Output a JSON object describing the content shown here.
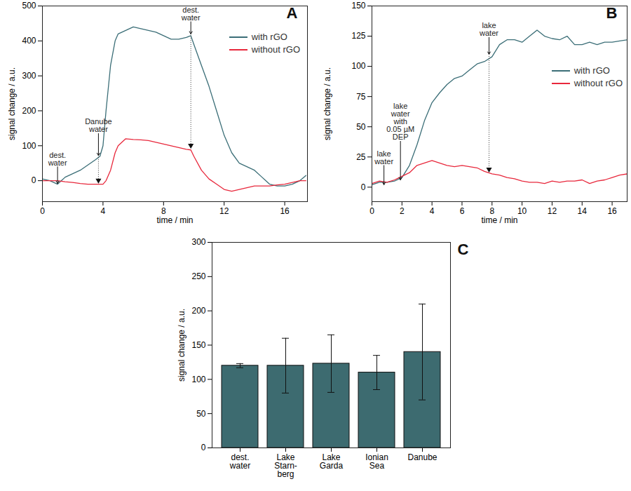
{
  "chart_data": [
    {
      "type": "line",
      "title": "A",
      "x_label": "time / min",
      "y_label": "signal change / a.u.",
      "xlim": [
        0,
        17.5
      ],
      "xticks": [
        0,
        4,
        8,
        12,
        16
      ],
      "ylim": [
        -60,
        500
      ],
      "yticks": [
        0,
        100,
        200,
        300,
        400,
        500
      ],
      "legend": "top-right",
      "x": [
        0,
        0.5,
        1,
        1.5,
        2,
        2.5,
        3,
        3.5,
        3.8,
        4,
        4.2,
        4.5,
        4.8,
        5,
        5.5,
        6,
        6.5,
        7,
        7.5,
        8,
        8.5,
        9,
        9.5,
        9.8,
        10,
        10.5,
        11,
        11.5,
        12,
        12.5,
        13,
        13.5,
        14,
        14.5,
        15,
        15.5,
        16,
        16.5,
        17,
        17.4
      ],
      "series": [
        {
          "name": "with rGO",
          "color": "#3b6e77",
          "values": [
            5,
            0,
            -10,
            10,
            20,
            30,
            45,
            60,
            70,
            100,
            200,
            330,
            400,
            420,
            430,
            440,
            435,
            430,
            425,
            415,
            405,
            405,
            410,
            415,
            390,
            330,
            270,
            200,
            130,
            80,
            50,
            40,
            30,
            10,
            -10,
            -15,
            -15,
            -10,
            0,
            15
          ]
        },
        {
          "name": "without  rGO",
          "color": "#e8283c",
          "values": [
            0,
            0,
            0,
            -3,
            -5,
            -8,
            -10,
            -10,
            -10,
            -10,
            0,
            30,
            80,
            100,
            120,
            118,
            117,
            115,
            110,
            105,
            100,
            95,
            90,
            88,
            70,
            30,
            5,
            -10,
            -25,
            -30,
            -25,
            -20,
            -15,
            -15,
            -15,
            -12,
            -10,
            -5,
            0,
            0
          ]
        }
      ],
      "annotations": [
        {
          "text": "dest.\nwater",
          "x": 1,
          "label_y": 40,
          "y": -8
        },
        {
          "text": "Danube\nwater",
          "x": 3.7,
          "label_y": 135,
          "y": 72,
          "y2": -5
        },
        {
          "text": "dest.\nwater",
          "x": 9.8,
          "label_y": 455,
          "y": 420,
          "y2": 95
        }
      ]
    },
    {
      "type": "line",
      "title": "B",
      "x_label": "time / min",
      "y_label": "signal change / a.u.",
      "xlim": [
        0,
        17
      ],
      "xticks": [
        0,
        2,
        4,
        6,
        8,
        10,
        12,
        14,
        16
      ],
      "ylim": [
        -12,
        150
      ],
      "yticks": [
        0,
        25,
        50,
        75,
        100,
        125,
        150
      ],
      "legend": "top-right",
      "x": [
        0,
        0.5,
        1,
        1.5,
        2,
        2.5,
        3,
        3.5,
        4,
        4.5,
        5,
        5.5,
        6,
        6.5,
        7,
        7.5,
        8,
        8.5,
        9,
        9.5,
        10,
        10.5,
        11,
        11.5,
        12,
        12.5,
        13,
        13.5,
        14,
        14.5,
        15,
        15.5,
        16,
        16.5,
        17
      ],
      "series": [
        {
          "name": "with rGO",
          "color": "#3b6e77",
          "values": [
            2,
            4,
            4,
            5,
            8,
            18,
            35,
            55,
            70,
            78,
            85,
            90,
            92,
            97,
            102,
            104,
            108,
            118,
            122,
            122,
            120,
            125,
            130,
            125,
            123,
            122,
            125,
            118,
            118,
            120,
            118,
            120,
            120,
            121,
            122
          ]
        },
        {
          "name": "without  rGO",
          "color": "#e8283c",
          "values": [
            3,
            5,
            4,
            6,
            9,
            12,
            18,
            20,
            22,
            20,
            18,
            17,
            18,
            17,
            16,
            13,
            11,
            10,
            8,
            7,
            5,
            4,
            4,
            3,
            5,
            4,
            5,
            5,
            6,
            3,
            5,
            6,
            8,
            10,
            11
          ]
        }
      ],
      "annotations": [
        {
          "text": "lake\nwater",
          "x": 0.8,
          "label_y": 18,
          "y": 2
        },
        {
          "text": "lake\nwater\nwith\n0.05 µM\nDEP",
          "x": 1.9,
          "label_y": 38,
          "y": 6
        },
        {
          "text": "lake\nwater",
          "x": 7.8,
          "label_y": 124,
          "y": 110,
          "y2": 13
        }
      ]
    },
    {
      "type": "bar",
      "title": "C",
      "y_label": "signal change / a.u.",
      "categories": [
        "dest.\nwater",
        "Lake\nStarn-\nberg",
        "Lake\nGarda",
        "Ionian\nSea",
        "Danube"
      ],
      "values": [
        120,
        120,
        123,
        110,
        140
      ],
      "errors": [
        3,
        40,
        42,
        25,
        70
      ],
      "color": "#3d6b70",
      "ylim": [
        0,
        300
      ],
      "yticks": [
        0,
        50,
        100,
        150,
        200,
        250,
        300
      ]
    }
  ]
}
